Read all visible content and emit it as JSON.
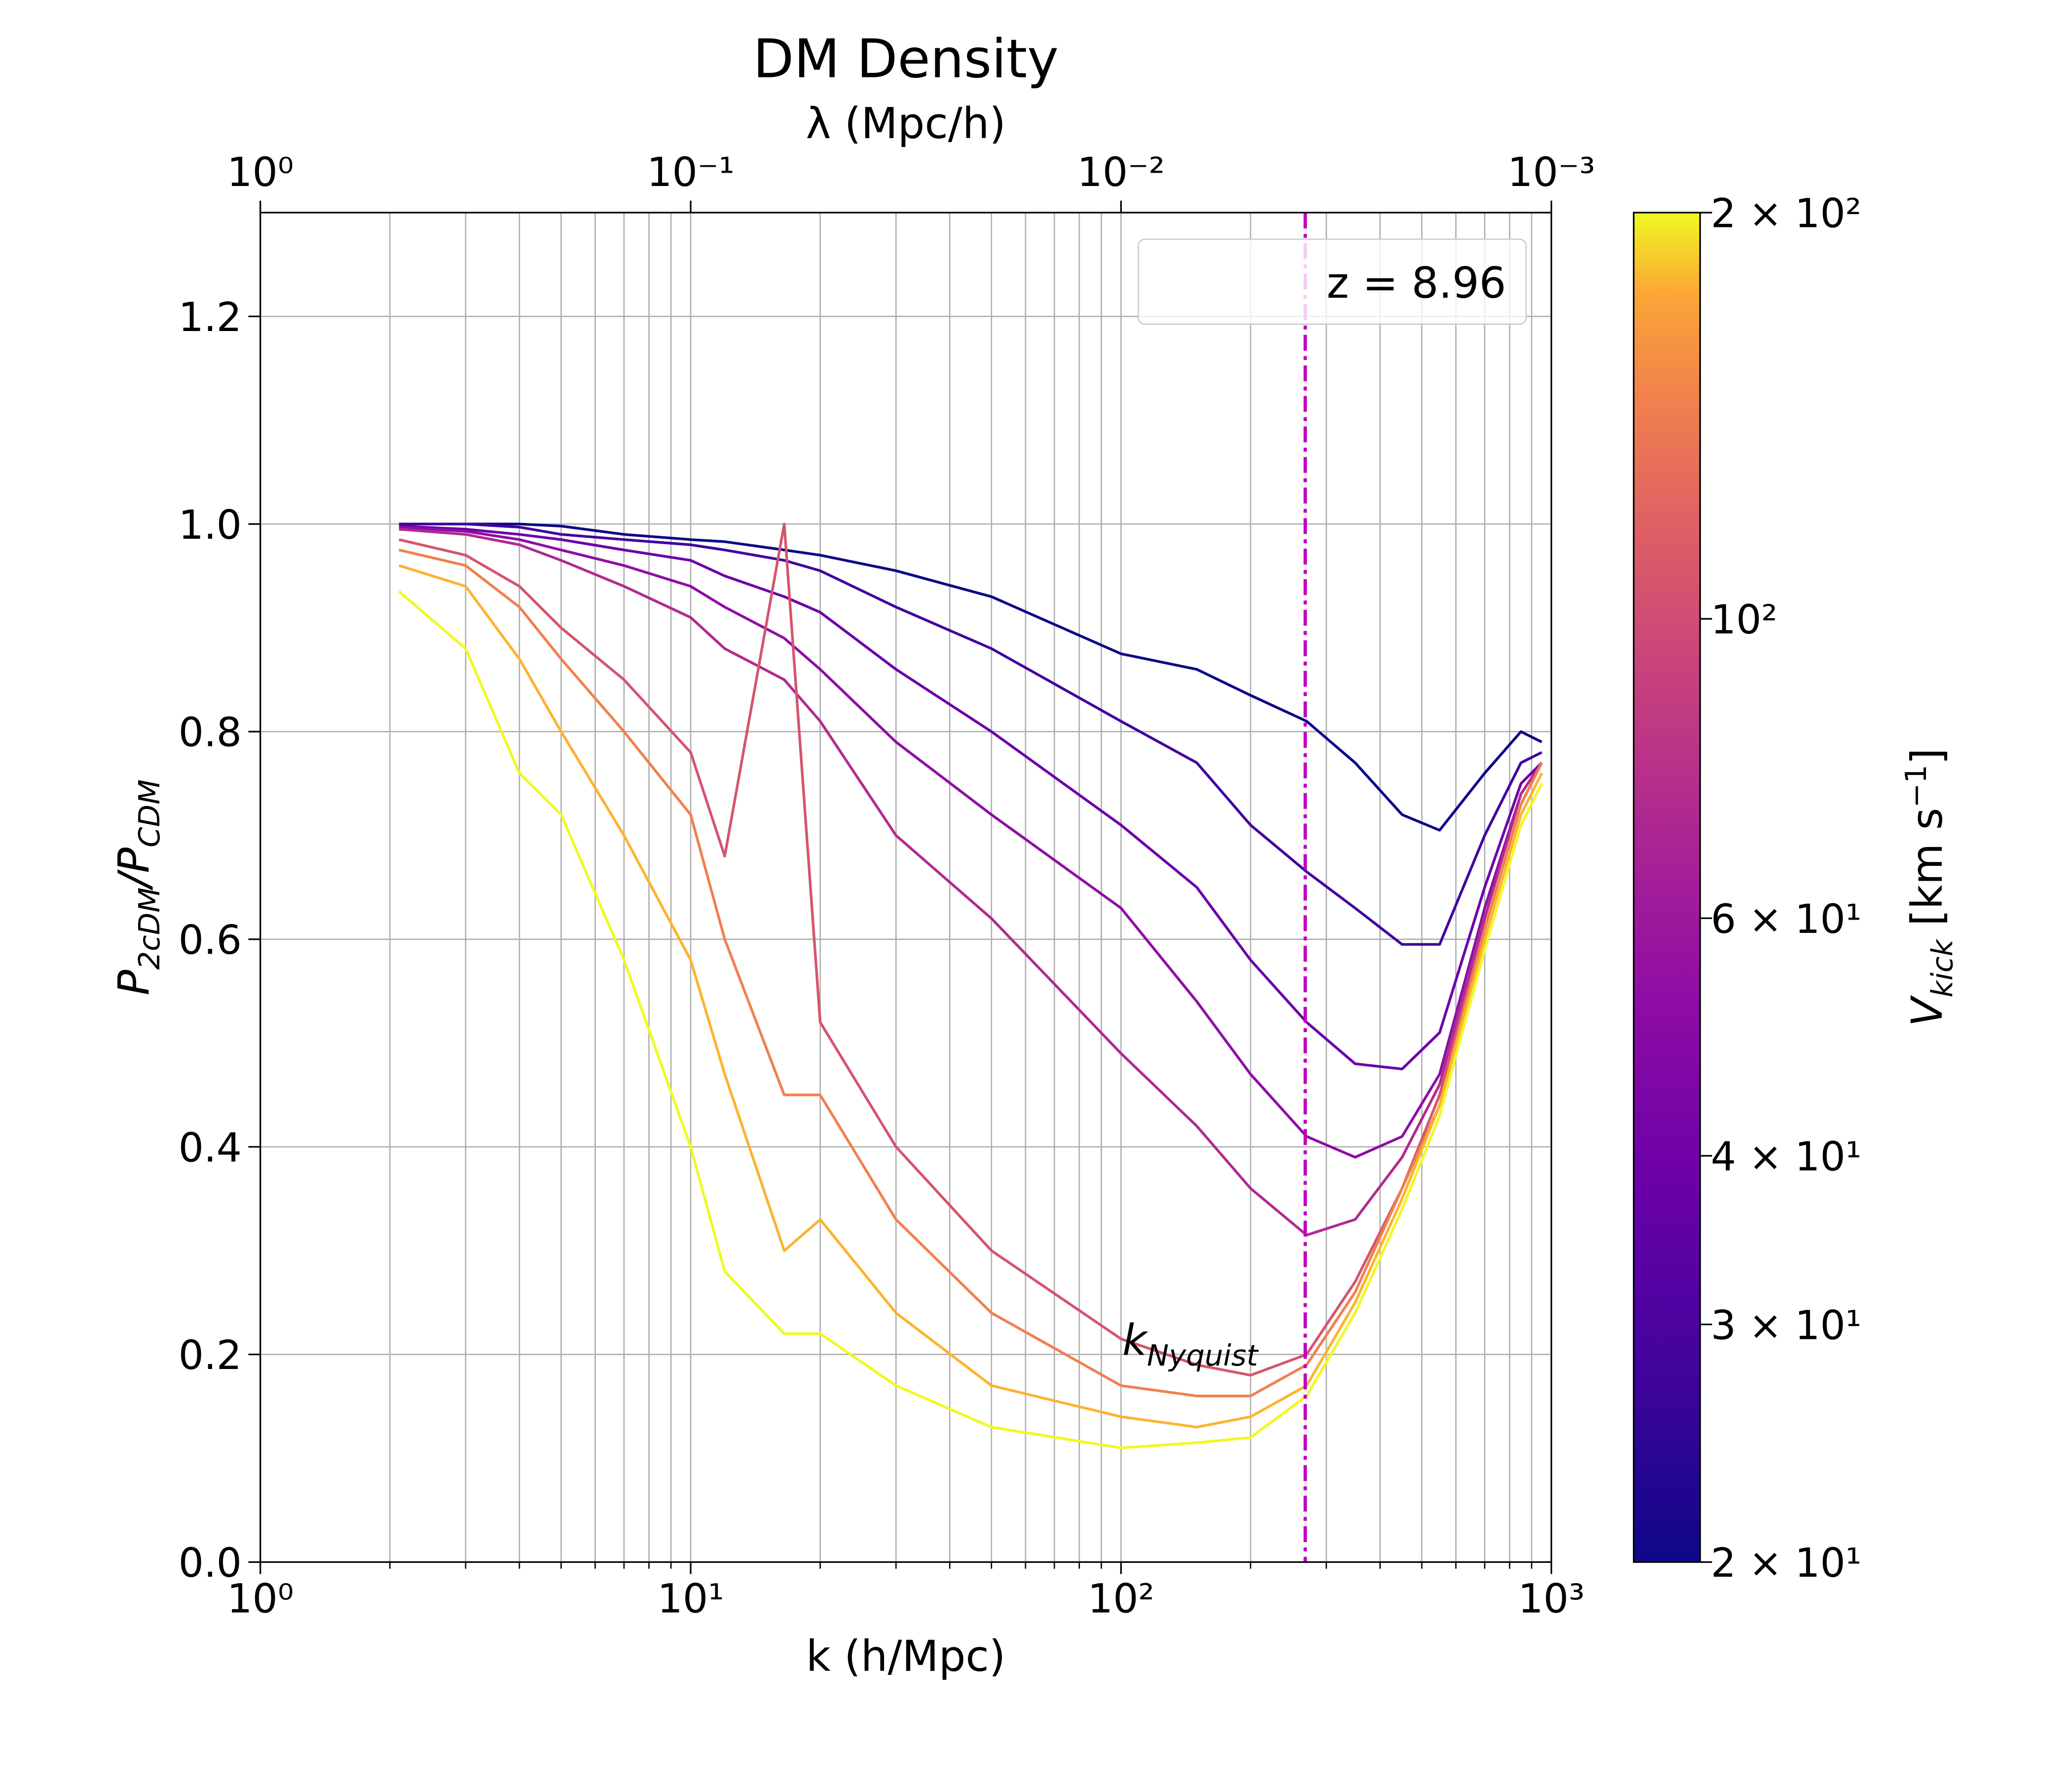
{
  "chart_data": {
    "type": "line",
    "title": "DM Density",
    "x2label": "λ (Mpc/h)",
    "xlabel": "k (h/Mpc)",
    "ylabel_parts": [
      "P",
      "2cDM",
      "/P",
      "CDM"
    ],
    "xscale": "log",
    "grid": true,
    "xlim": [
      1,
      1000
    ],
    "ylim": [
      0,
      1.3
    ],
    "xticks": [
      {
        "value": 1,
        "label": "10⁰"
      },
      {
        "value": 10,
        "label": "10¹"
      },
      {
        "value": 100,
        "label": "10²"
      },
      {
        "value": 1000,
        "label": "10³"
      }
    ],
    "xminorticks": [
      2,
      3,
      4,
      5,
      6,
      7,
      8,
      9,
      20,
      30,
      40,
      50,
      60,
      70,
      80,
      90,
      200,
      300,
      400,
      500,
      600,
      700,
      800,
      900
    ],
    "yticks": [
      0.0,
      0.2,
      0.4,
      0.6,
      0.8,
      1.0,
      1.2
    ],
    "ytick_labels": [
      "0.0",
      "0.2",
      "0.4",
      "0.6",
      "0.8",
      "1.0",
      "1.2"
    ],
    "x2lim": [
      1,
      0.001
    ],
    "x2ticks": [
      {
        "value": 1,
        "label": "10⁰"
      },
      {
        "value": 0.1,
        "label": "10⁻¹"
      },
      {
        "value": 0.01,
        "label": "10⁻²"
      },
      {
        "value": 0.001,
        "label": "10⁻³"
      }
    ],
    "legend_text": "z = 8.96",
    "legend_loc": "upper right",
    "vline": {
      "x": 268,
      "color": "#c000c0",
      "label_parts": [
        "k",
        "Nyquist"
      ]
    },
    "x": [
      2.1,
      3,
      4,
      5,
      7,
      10,
      12,
      16.5,
      20,
      30,
      50,
      100,
      150,
      200,
      270,
      350,
      450,
      550,
      700,
      850,
      950
    ],
    "series": [
      {
        "color": "#0d0887",
        "values": [
          1.0,
          1.0,
          1.0,
          0.998,
          0.99,
          0.985,
          0.983,
          0.975,
          0.97,
          0.955,
          0.93,
          0.875,
          0.86,
          0.835,
          0.81,
          0.77,
          0.72,
          0.705,
          0.76,
          0.8,
          0.79
        ]
      },
      {
        "color": "#41049d",
        "values": [
          1.0,
          1.0,
          0.997,
          0.99,
          0.985,
          0.98,
          0.975,
          0.965,
          0.955,
          0.92,
          0.88,
          0.81,
          0.77,
          0.71,
          0.665,
          0.63,
          0.595,
          0.595,
          0.7,
          0.77,
          0.78
        ]
      },
      {
        "color": "#6a00a8",
        "values": [
          0.998,
          0.995,
          0.99,
          0.985,
          0.975,
          0.965,
          0.95,
          0.93,
          0.915,
          0.86,
          0.8,
          0.71,
          0.65,
          0.58,
          0.52,
          0.48,
          0.475,
          0.51,
          0.65,
          0.75,
          0.77
        ]
      },
      {
        "color": "#8f0da4",
        "values": [
          0.997,
          0.993,
          0.985,
          0.975,
          0.96,
          0.94,
          0.92,
          0.89,
          0.86,
          0.79,
          0.72,
          0.63,
          0.54,
          0.47,
          0.41,
          0.39,
          0.41,
          0.47,
          0.63,
          0.74,
          0.77
        ]
      },
      {
        "color": "#b12a90",
        "values": [
          0.995,
          0.99,
          0.98,
          0.965,
          0.94,
          0.91,
          0.88,
          0.85,
          0.81,
          0.7,
          0.62,
          0.49,
          0.42,
          0.36,
          0.315,
          0.33,
          0.39,
          0.46,
          0.62,
          0.74,
          0.77
        ]
      },
      {
        "color": "#d5546e",
        "values": [
          0.985,
          0.97,
          0.94,
          0.9,
          0.85,
          0.78,
          0.68,
          1.0,
          0.52,
          0.4,
          0.3,
          0.215,
          0.19,
          0.18,
          0.2,
          0.27,
          0.36,
          0.45,
          0.61,
          0.73,
          0.77
        ]
      },
      {
        "color": "#f0804e",
        "values": [
          0.975,
          0.96,
          0.92,
          0.87,
          0.8,
          0.72,
          0.6,
          0.45,
          0.45,
          0.33,
          0.24,
          0.17,
          0.16,
          0.16,
          0.19,
          0.26,
          0.36,
          0.44,
          0.61,
          0.73,
          0.77
        ]
      },
      {
        "color": "#fdb32f",
        "values": [
          0.96,
          0.94,
          0.87,
          0.8,
          0.7,
          0.58,
          0.47,
          0.3,
          0.33,
          0.24,
          0.17,
          0.14,
          0.13,
          0.14,
          0.17,
          0.25,
          0.35,
          0.44,
          0.6,
          0.72,
          0.76
        ]
      },
      {
        "color": "#f0f921",
        "values": [
          0.935,
          0.88,
          0.76,
          0.72,
          0.58,
          0.4,
          0.28,
          0.22,
          0.22,
          0.17,
          0.13,
          0.11,
          0.115,
          0.12,
          0.16,
          0.24,
          0.34,
          0.43,
          0.59,
          0.71,
          0.75
        ]
      }
    ],
    "colorbar": {
      "label_parts": [
        "V",
        "kick",
        " [km s",
        "−1",
        "]"
      ],
      "lim": [
        20,
        200
      ],
      "scale": "log",
      "ticks": [
        {
          "value": 20,
          "label": "2 × 10¹"
        },
        {
          "value": 30,
          "label": "3 × 10¹"
        },
        {
          "value": 40,
          "label": "4 × 10¹"
        },
        {
          "value": 60,
          "label": "6 × 10¹"
        },
        {
          "value": 100,
          "label": "10²"
        },
        {
          "value": 200,
          "label": "2 × 10²"
        }
      ]
    }
  }
}
